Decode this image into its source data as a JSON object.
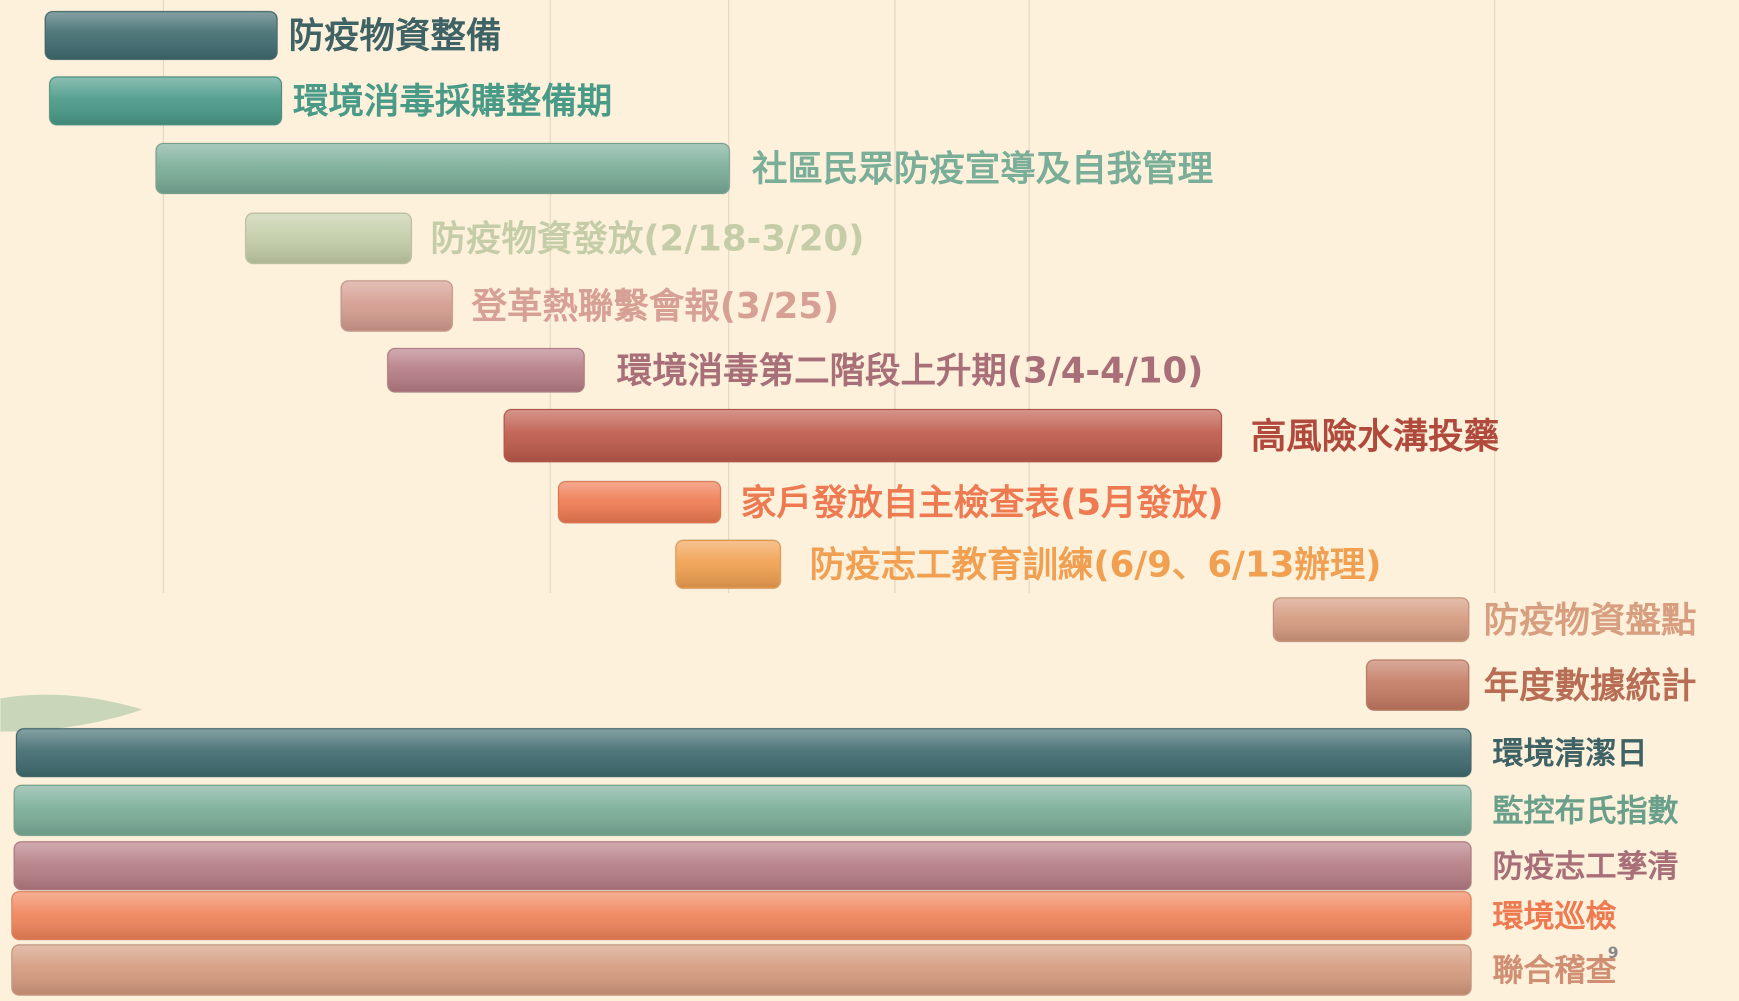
{
  "tasks": [
    {
      "label": "防疫物資整備"
    },
    {
      "label": "環境消毒採購整備期"
    },
    {
      "label": "社區民眾防疫宣導及自我管理"
    },
    {
      "label": "防疫物資發放(2/18-3/20)"
    },
    {
      "label": "登革熱聯繫會報(3/25)"
    },
    {
      "label": "環境消毒第二階段上升期(3/4-4/10)"
    },
    {
      "label": "高風險水溝投藥"
    },
    {
      "label": "家戶發放自主檢查表(5月發放)"
    },
    {
      "label": "防疫志工教育訓練(6/9、6/13辦理)"
    },
    {
      "label": "防疫物資盤點"
    },
    {
      "label": "年度數據統計"
    },
    {
      "label": "環境清潔日"
    },
    {
      "label": "監控布氏指數"
    },
    {
      "label": "防疫志工孳清"
    },
    {
      "label": "環境巡檢"
    },
    {
      "label": "聯合稽查"
    }
  ],
  "page_number": "9"
}
